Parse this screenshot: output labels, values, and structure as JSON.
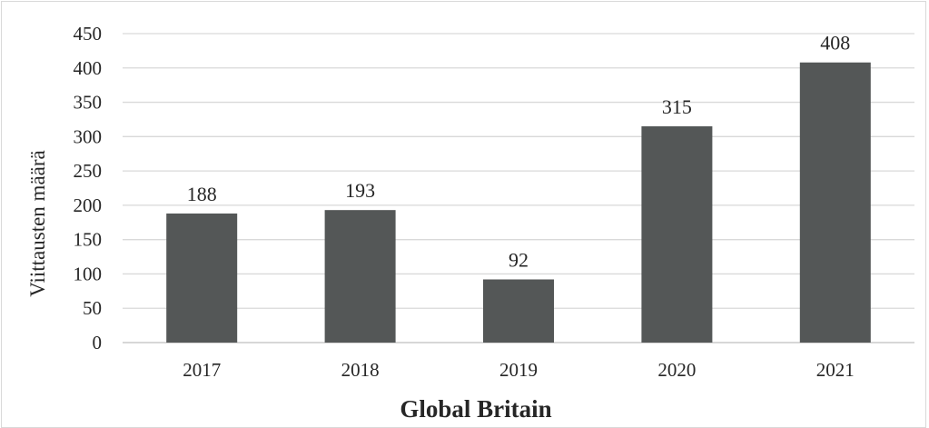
{
  "chart_data": {
    "type": "bar",
    "categories": [
      "2017",
      "2018",
      "2019",
      "2020",
      "2021"
    ],
    "values": [
      188,
      193,
      92,
      315,
      408
    ],
    "data_labels": [
      "188",
      "193",
      "92",
      "315",
      "408"
    ],
    "title": "",
    "xlabel": "Global Britain",
    "ylabel": "Viittausten määrä",
    "ylim": [
      0,
      450
    ],
    "yticks": [
      0,
      50,
      100,
      150,
      200,
      250,
      300,
      350,
      400,
      450
    ],
    "grid": true,
    "legend": "none",
    "colors": {
      "bar": "#545757",
      "grid": "#d9d9d9",
      "axis": "#bfbfbf",
      "text": "#262626"
    }
  }
}
